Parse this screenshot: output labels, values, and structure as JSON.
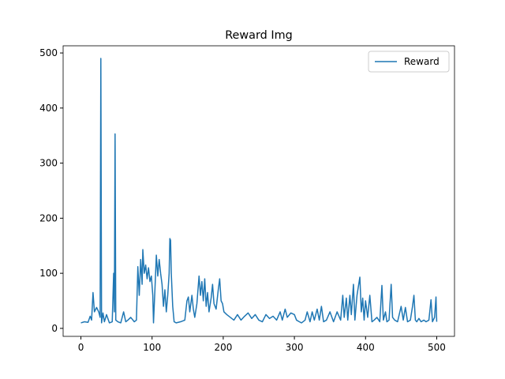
{
  "chart_data": {
    "type": "line",
    "title": "Reward Img",
    "x": [
      0,
      5,
      10,
      13,
      15,
      17,
      19,
      22,
      25,
      27,
      28,
      29,
      31,
      33,
      36,
      40,
      44,
      46,
      47,
      48,
      49,
      52,
      56,
      60,
      63,
      66,
      70,
      75,
      78,
      80,
      82,
      84,
      86,
      87,
      89,
      91,
      93,
      95,
      97,
      99,
      101,
      102,
      104,
      106,
      108,
      110,
      112,
      114,
      116,
      118,
      120,
      122,
      124,
      125,
      126,
      127,
      129,
      131,
      134,
      140,
      146,
      149,
      151,
      153,
      156,
      158,
      160,
      163,
      166,
      168,
      170,
      172,
      174,
      176,
      178,
      180,
      183,
      185,
      187,
      190,
      193,
      195,
      197,
      199,
      201,
      205,
      210,
      215,
      220,
      225,
      230,
      235,
      240,
      245,
      250,
      255,
      260,
      265,
      270,
      275,
      280,
      283,
      287,
      290,
      295,
      300,
      303,
      307,
      310,
      315,
      318,
      322,
      325,
      328,
      332,
      335,
      338,
      341,
      345,
      350,
      355,
      360,
      365,
      368,
      370,
      373,
      375,
      378,
      380,
      383,
      385,
      388,
      392,
      394,
      396,
      398,
      400,
      403,
      406,
      409,
      412,
      416,
      420,
      423,
      425,
      428,
      430,
      433,
      436,
      438,
      441,
      445,
      450,
      453,
      456,
      459,
      463,
      466,
      468,
      470,
      472,
      475,
      478,
      482,
      485,
      489,
      492,
      494,
      497,
      499,
      500
    ],
    "series": [
      {
        "name": "Reward",
        "color": "#1f77b4",
        "values": [
          10,
          12,
          11,
          22,
          15,
          65,
          30,
          38,
          30,
          20,
          490,
          10,
          28,
          12,
          25,
          10,
          12,
          100,
          30,
          353,
          15,
          12,
          10,
          30,
          12,
          15,
          20,
          12,
          15,
          112,
          60,
          125,
          80,
          143,
          100,
          115,
          90,
          110,
          85,
          95,
          60,
          10,
          70,
          133,
          95,
          125,
          100,
          80,
          40,
          70,
          30,
          60,
          100,
          163,
          160,
          100,
          40,
          12,
          10,
          12,
          15,
          50,
          57,
          30,
          60,
          35,
          20,
          45,
          95,
          60,
          85,
          50,
          90,
          40,
          65,
          30,
          55,
          80,
          45,
          35,
          70,
          90,
          50,
          45,
          30,
          25,
          20,
          15,
          25,
          15,
          22,
          28,
          18,
          25,
          15,
          12,
          25,
          18,
          22,
          15,
          30,
          15,
          35,
          20,
          28,
          25,
          15,
          12,
          10,
          15,
          30,
          12,
          30,
          15,
          35,
          15,
          40,
          12,
          15,
          30,
          12,
          30,
          15,
          60,
          20,
          55,
          15,
          60,
          25,
          80,
          15,
          60,
          93,
          30,
          55,
          15,
          50,
          20,
          60,
          12,
          15,
          20,
          12,
          78,
          15,
          30,
          12,
          15,
          80,
          20,
          15,
          12,
          40,
          15,
          38,
          12,
          15,
          40,
          60,
          15,
          12,
          18,
          12,
          15,
          12,
          15,
          52,
          12,
          20,
          57,
          12
        ]
      }
    ],
    "xlim": [
      -25,
      525
    ],
    "ylim": [
      -14.5,
      513
    ],
    "xticks": [
      0,
      100,
      200,
      300,
      400,
      500
    ],
    "yticks": [
      0,
      100,
      200,
      300,
      400,
      500
    ],
    "legend": "upper right"
  }
}
